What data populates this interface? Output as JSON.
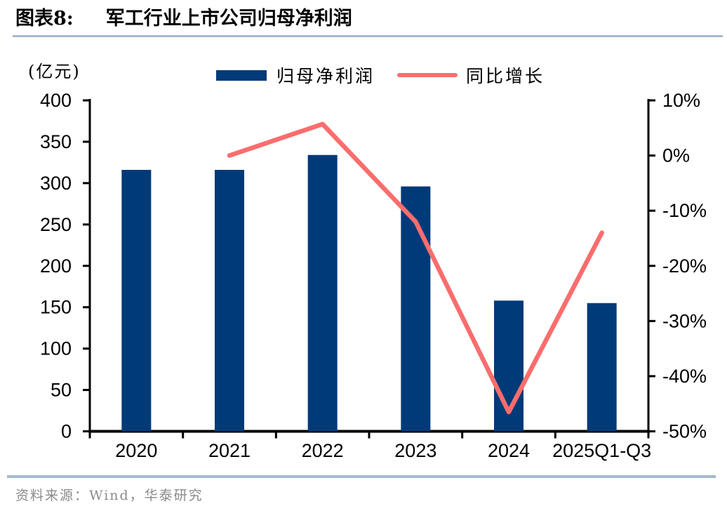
{
  "header": {
    "label": "图表8:",
    "title": "军工行业上市公司归母净利润"
  },
  "legend": {
    "bar_label": "归母净利润",
    "line_label": "同比增长"
  },
  "footer": {
    "source": "资料来源：Wind，华泰研究"
  },
  "colors": {
    "bar": "#003a78",
    "line": "#fa6d6d",
    "axis": "#000000",
    "divider": "#a5b9d0",
    "source_text": "#8a8a8a"
  },
  "chart_data": {
    "type": "bar+line combo",
    "title": "军工行业上市公司归母净利润",
    "categories": [
      "2020",
      "2021",
      "2022",
      "2023",
      "2024",
      "2025Q1-Q3"
    ],
    "series": [
      {
        "name": "归母净利润",
        "type": "bar",
        "axis": "left",
        "unit": "亿元",
        "values": [
          316,
          316,
          334,
          296,
          158,
          155
        ]
      },
      {
        "name": "同比增长",
        "type": "line",
        "axis": "right",
        "unit": "%",
        "values": [
          null,
          0,
          5.7,
          -12,
          -46.5,
          -14
        ]
      }
    ],
    "left_axis": {
      "label": "(亿元)",
      "min": 0,
      "max": 400,
      "step": 50,
      "tick_labels": [
        "400",
        "350",
        "300",
        "250",
        "200",
        "150",
        "100",
        "50",
        "0"
      ]
    },
    "right_axis": {
      "min": -50,
      "max": 10,
      "step": 10,
      "tick_labels": [
        "10%",
        "0%",
        "-10%",
        "-20%",
        "-30%",
        "-40%",
        "-50%"
      ]
    },
    "grid": false,
    "legend_position": "top"
  }
}
